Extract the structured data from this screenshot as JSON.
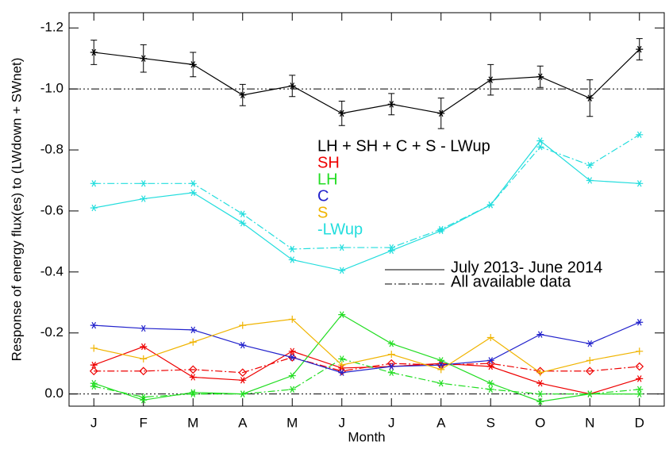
{
  "chart_data": {
    "type": "line",
    "y_label": "Response of energy flux(es) to (LWdown + SWnet)",
    "x_label": "Month",
    "categories": [
      "J",
      "F",
      "M",
      "A",
      "M",
      "J",
      "J",
      "A",
      "S",
      "O",
      "N",
      "D"
    ],
    "ylim": [
      0.04,
      -1.25
    ],
    "yticks": [
      -1.2,
      {
        "value": -1.0,
        "label": "-1.0"
      },
      -0.8,
      -0.6,
      -0.4,
      -0.2,
      {
        "value": 0.0,
        "label": "0.0"
      }
    ],
    "reference_lines": [
      -1.0,
      0.0
    ],
    "line_styles": [
      {
        "label": "July 2013- June 2014",
        "style": "solid"
      },
      {
        "label": "All available data",
        "style": "dashdot"
      }
    ],
    "series": [
      {
        "name": "LH + SH + C + S - LWup",
        "color": "#000000",
        "marker": "asterisk",
        "values": [
          -1.12,
          -1.1,
          -1.08,
          -0.98,
          -1.01,
          -0.92,
          -0.95,
          -0.92,
          -1.03,
          -1.04,
          -0.97,
          -1.13
        ],
        "errors": [
          0.04,
          0.045,
          0.04,
          0.035,
          0.035,
          0.04,
          0.035,
          0.05,
          0.05,
          0.035,
          0.06,
          0.035
        ]
      },
      {
        "name": "SH",
        "color": "#ee0000",
        "marker": "asterisk",
        "marker_all": "diamond",
        "values": [
          -0.095,
          -0.155,
          -0.055,
          -0.045,
          -0.14,
          -0.085,
          -0.09,
          -0.1,
          -0.09,
          -0.035,
          0.0,
          -0.05
        ],
        "values_all": [
          -0.075,
          -0.075,
          -0.08,
          -0.07,
          -0.12,
          -0.075,
          -0.1,
          -0.095,
          -0.1,
          -0.075,
          -0.075,
          -0.09
        ]
      },
      {
        "name": "LH",
        "color": "#22dd22",
        "marker": "asterisk",
        "marker_all": "asterisk",
        "values": [
          -0.035,
          0.02,
          -0.005,
          0.0,
          -0.06,
          -0.26,
          -0.165,
          -0.11,
          -0.035,
          0.025,
          0.0,
          0.0
        ],
        "values_all": [
          -0.025,
          0.01,
          0.0,
          0.0,
          -0.015,
          -0.115,
          -0.07,
          -0.035,
          -0.015,
          0.0,
          0.0,
          -0.015
        ]
      },
      {
        "name": "C",
        "color": "#2222cc",
        "marker": "asterisk",
        "values": [
          -0.225,
          -0.215,
          -0.21,
          -0.16,
          -0.12,
          -0.07,
          -0.09,
          -0.095,
          -0.11,
          -0.195,
          -0.165,
          -0.235
        ]
      },
      {
        "name": "S",
        "color": "#f0b400",
        "marker": "plus",
        "values": [
          -0.15,
          -0.115,
          -0.17,
          -0.225,
          -0.245,
          -0.095,
          -0.13,
          -0.08,
          -0.185,
          -0.07,
          -0.11,
          -0.14
        ]
      },
      {
        "name": "-LWup",
        "color": "#22dddd",
        "marker": "asterisk",
        "marker_all": "asterisk",
        "values": [
          -0.61,
          -0.64,
          -0.66,
          -0.56,
          -0.44,
          -0.405,
          -0.47,
          -0.535,
          -0.62,
          -0.83,
          -0.7,
          -0.69
        ],
        "values_all": [
          -0.69,
          -0.69,
          -0.69,
          -0.59,
          -0.475,
          -0.48,
          -0.48,
          -0.54,
          -0.62,
          -0.81,
          -0.75,
          -0.85
        ]
      }
    ]
  }
}
